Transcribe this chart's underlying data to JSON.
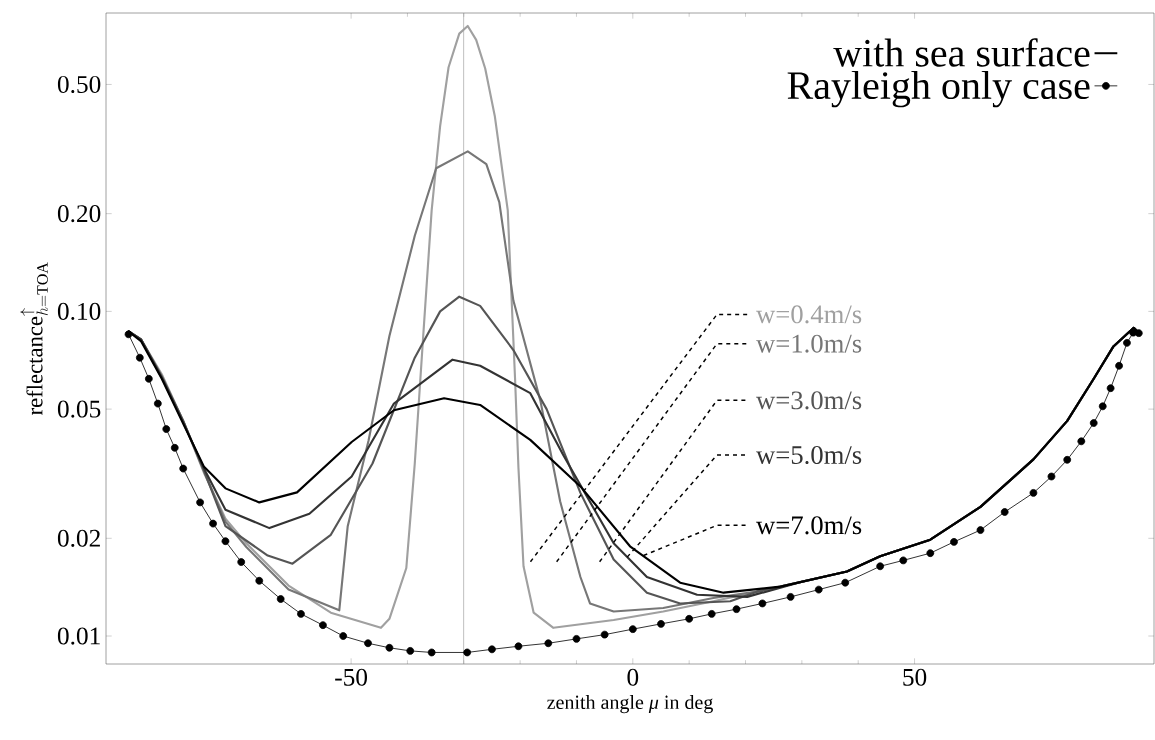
{
  "chart_data": {
    "type": "line",
    "xlabel": "zenith angle *μ* in deg",
    "ylabel": "\\mathrm{reflectance}^{\\uparrow}_{h=\\mathrm{TOA}}",
    "log": "y",
    "xlim": [
      -93.5,
      92.5
    ],
    "ylim": [
      0.0082,
      0.83
    ],
    "xticks": [
      -50,
      0,
      50
    ],
    "yticks": [
      {
        "value": 0.01,
        "label": "0.01"
      },
      {
        "value": 0.02,
        "label": "0.02"
      },
      {
        "value": 0.05,
        "label": "0.05"
      },
      {
        "value": 0.1,
        "label": "0.10"
      },
      {
        "value": 0.2,
        "label": "0.20"
      },
      {
        "value": 0.5,
        "label": "0.50"
      }
    ],
    "legend": "top right",
    "ref_lines": [
      {
        "axis": "x",
        "value": -30,
        "color": "#999999"
      }
    ],
    "series": [
      {
        "color": "#a0a0a0",
        "x": [
          -89.6,
          -87.3,
          -83.6,
          -79.8,
          -76,
          -72.3,
          -68.6,
          -61.1,
          -53.6,
          -44.7,
          -43.2,
          -40.2,
          -38.7,
          -37.2,
          -35.7,
          -34.2,
          -32.7,
          -30.8,
          -29.3,
          -27.8,
          -26.2,
          -24.5,
          -22.2,
          -20.9,
          -20.3,
          -19.4,
          -17.6,
          -14.1,
          -3.4,
          5.4,
          14.3,
          22,
          26.2,
          38,
          43.9,
          52.8,
          61.7,
          71.1,
          77.1,
          81.8,
          85.3,
          88.9,
          89.8
        ],
        "values": [
          0.087,
          0.082,
          0.064,
          0.046,
          0.0315,
          0.023,
          0.0193,
          0.0143,
          0.0118,
          0.0106,
          0.0113,
          0.0162,
          0.034,
          0.084,
          0.205,
          0.372,
          0.565,
          0.717,
          0.757,
          0.686,
          0.56,
          0.4,
          0.205,
          0.062,
          0.033,
          0.0164,
          0.0118,
          0.0106,
          0.0112,
          0.0119,
          0.0128,
          0.0137,
          0.0142,
          0.0158,
          0.0176,
          0.0198,
          0.025,
          0.035,
          0.046,
          0.062,
          0.078,
          0.089,
          0.086
        ]
      },
      {
        "color": "#777777",
        "x": [
          -89.6,
          -87.3,
          -83.6,
          -79.8,
          -76,
          -72.3,
          -68.6,
          -61.1,
          -52.1,
          -50.6,
          -46.9,
          -43.2,
          -38.7,
          -34.9,
          -29.3,
          -26,
          -23.7,
          -21.2,
          -16.4,
          -12.9,
          -9.3,
          -7.6,
          -3.4,
          5.4,
          14.3,
          22,
          26.2,
          38,
          43.9,
          52.8,
          61.7,
          71.1,
          77.1,
          81.8,
          85.3,
          88.9,
          89.8
        ],
        "values": [
          0.087,
          0.082,
          0.063,
          0.046,
          0.0318,
          0.0225,
          0.0188,
          0.0139,
          0.012,
          0.0218,
          0.04,
          0.084,
          0.171,
          0.276,
          0.311,
          0.284,
          0.217,
          0.108,
          0.053,
          0.026,
          0.0152,
          0.0126,
          0.0119,
          0.0122,
          0.0131,
          0.0137,
          0.0142,
          0.0158,
          0.0176,
          0.0198,
          0.025,
          0.035,
          0.046,
          0.062,
          0.078,
          0.089,
          0.086
        ]
      },
      {
        "color": "#555555",
        "x": [
          -89.6,
          -87.3,
          -83.6,
          -79.8,
          -76,
          -72.3,
          -64.8,
          -60.4,
          -53.6,
          -46.2,
          -38.7,
          -34.2,
          -30.8,
          -27.1,
          -21.2,
          -15.3,
          -9.3,
          -3.4,
          2.5,
          8.4,
          17.3,
          22,
          26.2,
          38,
          43.9,
          52.8,
          61.7,
          71.1,
          77.1,
          81.8,
          85.3,
          88.9,
          89.8
        ],
        "values": [
          0.087,
          0.082,
          0.063,
          0.046,
          0.032,
          0.0218,
          0.0177,
          0.0167,
          0.0205,
          0.034,
          0.072,
          0.1,
          0.111,
          0.104,
          0.076,
          0.05,
          0.0276,
          0.0172,
          0.0136,
          0.0126,
          0.0128,
          0.0137,
          0.0142,
          0.0158,
          0.0176,
          0.0198,
          0.025,
          0.035,
          0.046,
          0.062,
          0.078,
          0.089,
          0.086
        ]
      },
      {
        "color": "#333333",
        "x": [
          -89.6,
          -87.3,
          -83.6,
          -79.8,
          -76,
          -72.3,
          -64.5,
          -57.4,
          -49.9,
          -42.4,
          -32,
          -27.1,
          -18.2,
          -12.3,
          -3.4,
          2.5,
          11.4,
          20.3,
          30,
          38,
          43.9,
          52.8,
          61.7,
          71.1,
          77.1,
          81.8,
          85.3,
          88.9,
          89.8
        ],
        "values": [
          0.087,
          0.082,
          0.0625,
          0.0455,
          0.0325,
          0.0245,
          0.0215,
          0.0238,
          0.031,
          0.052,
          0.071,
          0.068,
          0.056,
          0.036,
          0.0193,
          0.0152,
          0.0134,
          0.0132,
          0.0147,
          0.0158,
          0.0176,
          0.0198,
          0.025,
          0.035,
          0.046,
          0.062,
          0.078,
          0.089,
          0.086
        ]
      },
      {
        "color": "#000000",
        "x": [
          -89.6,
          -87.3,
          -83.6,
          -79.7,
          -76.1,
          -72.3,
          -66.3,
          -59.6,
          -49.9,
          -42.4,
          -33.5,
          -27.1,
          -18.2,
          -9.3,
          -0.5,
          8.4,
          16.1,
          26.2,
          38,
          43.9,
          52.8,
          61.7,
          71.1,
          77.1,
          81.8,
          85.3,
          88.9,
          89.8
        ],
        "values": [
          0.087,
          0.081,
          0.062,
          0.0447,
          0.0332,
          0.0285,
          0.0258,
          0.0277,
          0.0396,
          0.0496,
          0.054,
          0.0515,
          0.0402,
          0.0289,
          0.0189,
          0.0146,
          0.0136,
          0.0142,
          0.0158,
          0.0176,
          0.0198,
          0.025,
          0.035,
          0.046,
          0.062,
          0.078,
          0.089,
          0.086
        ]
      },
      {
        "name": "Rayleigh  only case",
        "color": "#000000",
        "marker": "circle",
        "line_style": "solid",
        "x": [
          -89.5,
          -87.5,
          -85.9,
          -84.3,
          -82.8,
          -81.3,
          -79.8,
          -76.8,
          -74.5,
          -72.3,
          -69.5,
          -66.3,
          -62.5,
          -58.9,
          -55,
          -51.4,
          -47,
          -43.2,
          -39.5,
          -35.7,
          -29.4,
          -25,
          -20.3,
          -15,
          -10,
          -5,
          0,
          5,
          10,
          14,
          18.4,
          23,
          28,
          33,
          37.7,
          43.9,
          48,
          52.8,
          57,
          61.7,
          66,
          71.1,
          74.3,
          77.1,
          79.6,
          81.8,
          83.4,
          84.8,
          86.3,
          87.7,
          88.8,
          89.8
        ],
        "values": [
          0.085,
          0.072,
          0.062,
          0.052,
          0.0434,
          0.038,
          0.0328,
          0.0258,
          0.0222,
          0.0196,
          0.0169,
          0.0148,
          0.013,
          0.0117,
          0.0108,
          0.01,
          0.0095,
          0.0092,
          0.009,
          0.0089,
          0.0089,
          0.0091,
          0.0093,
          0.0095,
          0.0098,
          0.0101,
          0.0105,
          0.0109,
          0.0113,
          0.0117,
          0.0121,
          0.0126,
          0.0132,
          0.0139,
          0.0146,
          0.0164,
          0.0171,
          0.018,
          0.0195,
          0.0212,
          0.0241,
          0.0276,
          0.031,
          0.0349,
          0.0398,
          0.0453,
          0.051,
          0.058,
          0.068,
          0.08,
          0.086,
          0.0857
        ]
      }
    ],
    "annotations": [
      "w=0.4m/s",
      "w=1.0m/s",
      "w=3.0m/s",
      {
        "text": "w=5.0m/s",
        "x": -1.0,
        "y": 0.0175
      },
      {
        "text": "w=7.0m/s",
        "x": 1.9,
        "y": 0.0177
      },
      "with sea surface"
    ]
  }
}
